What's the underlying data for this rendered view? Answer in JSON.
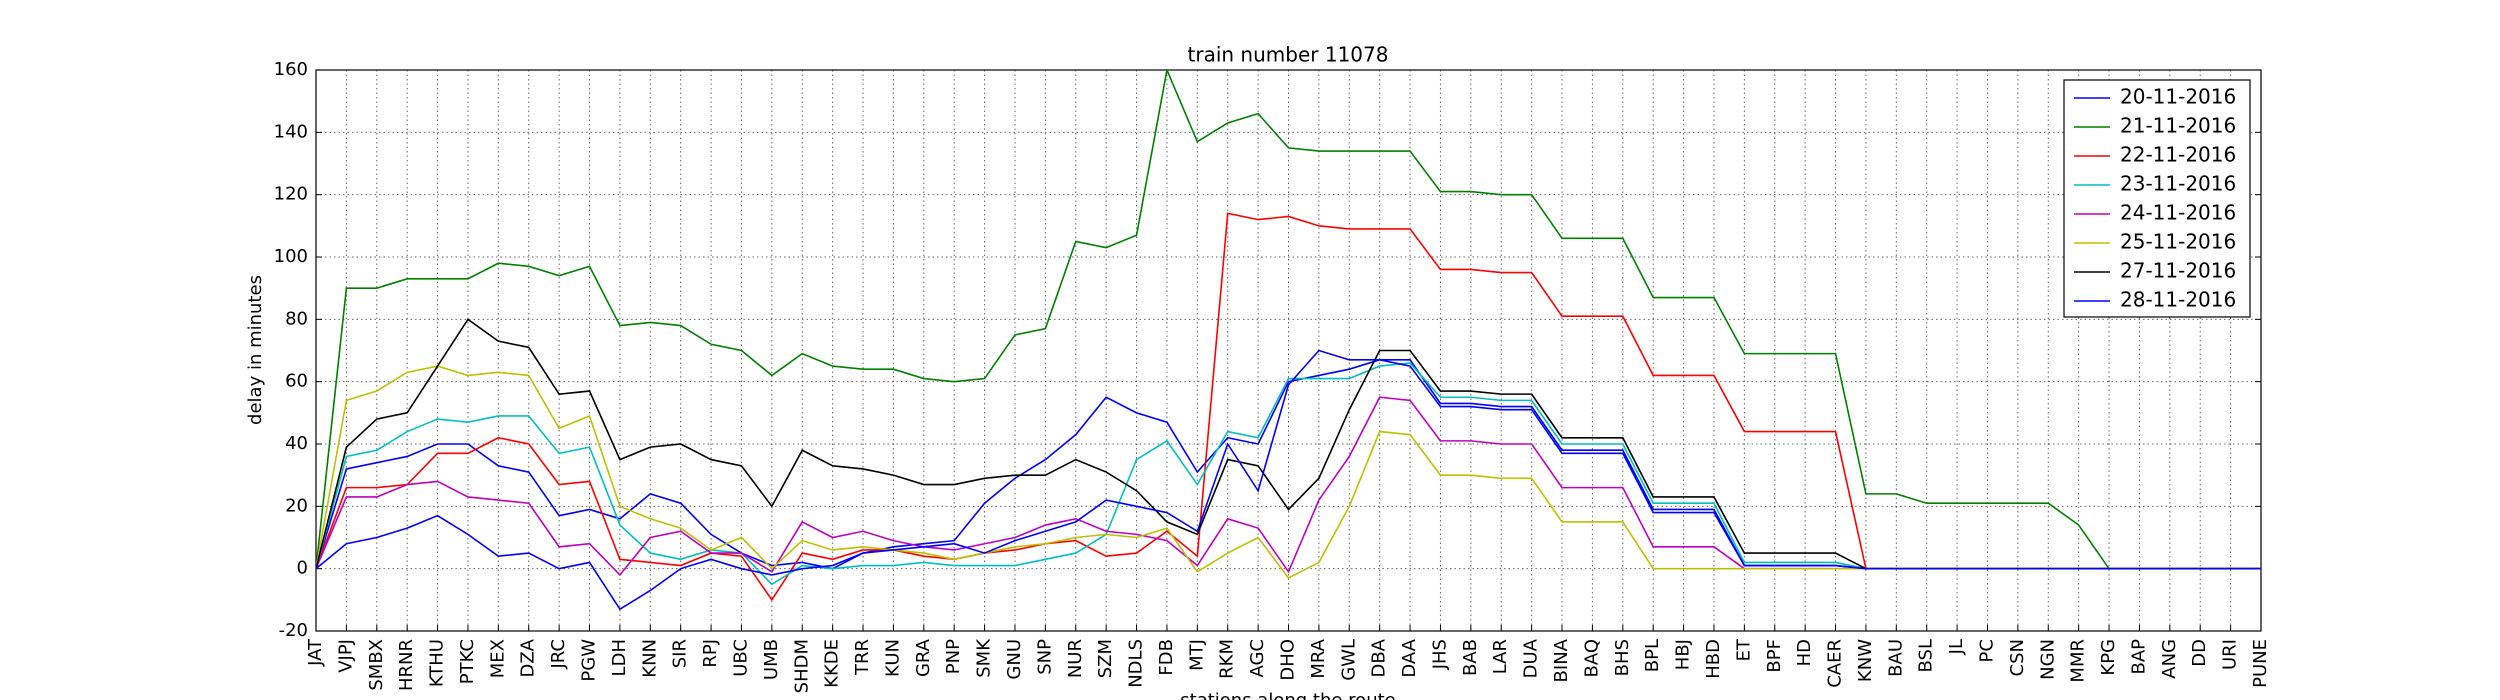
{
  "chart_data": {
    "type": "line",
    "title": "train number 11078",
    "x_label": "stations along the route",
    "y_label": "delay in minutes",
    "categories": [
      "JAT",
      "VJPJ",
      "SMBX",
      "HRNR",
      "KTHU",
      "PTKC",
      "MEX",
      "DZA",
      "JRC",
      "PGW",
      "LDH",
      "KNN",
      "SIR",
      "RPJ",
      "UBC",
      "UMB",
      "SHDM",
      "KKDE",
      "TRR",
      "KUN",
      "GRA",
      "PNP",
      "SMK",
      "GNU",
      "SNP",
      "NUR",
      "SZM",
      "NDLS",
      "FDB",
      "MTJ",
      "RKM",
      "AGC",
      "DHO",
      "MRA",
      "GWL",
      "DBA",
      "DAA",
      "JHS",
      "BAB",
      "LAR",
      "DUA",
      "BINA",
      "BAQ",
      "BHS",
      "BPL",
      "HBJ",
      "HBD",
      "ET",
      "BPF",
      "HD",
      "CAER",
      "KNW",
      "BAU",
      "BSL",
      "JL",
      "PC",
      "CSN",
      "NGN",
      "MMR",
      "KPG",
      "BAP",
      "ANG",
      "DD",
      "URI",
      "PUNE"
    ],
    "series": [
      {
        "name": "20-11-2016",
        "color": "#0000ff",
        "values": [
          0,
          32,
          34,
          36,
          40,
          40,
          33,
          31,
          17,
          19,
          16,
          24,
          21,
          11,
          5,
          1,
          2,
          0,
          5,
          7,
          8,
          9,
          21,
          29,
          35,
          43,
          55,
          50,
          47,
          31,
          42,
          40,
          60,
          62,
          64,
          67,
          67,
          53,
          53,
          52,
          52,
          38,
          38,
          38,
          19,
          19,
          19,
          1,
          1,
          1,
          1,
          0,
          0,
          0,
          0,
          0,
          0,
          0,
          0,
          0,
          0,
          0,
          0,
          0,
          0
        ]
      },
      {
        "name": "21-11-2016",
        "color": "#008000",
        "values": [
          0,
          90,
          90,
          93,
          93,
          93,
          98,
          97,
          94,
          97,
          78,
          79,
          78,
          72,
          70,
          62,
          69,
          65,
          64,
          64,
          61,
          60,
          61,
          75,
          77,
          105,
          103,
          107,
          160,
          137,
          143,
          146,
          135,
          134,
          134,
          134,
          134,
          121,
          121,
          120,
          120,
          106,
          106,
          106,
          87,
          87,
          87,
          69,
          69,
          69,
          69,
          24,
          24,
          21,
          21,
          21,
          21,
          21,
          14,
          0,
          0,
          0,
          0,
          0,
          0
        ]
      },
      {
        "name": "22-11-2016",
        "color": "#ff0000",
        "values": [
          0,
          26,
          26,
          27,
          37,
          37,
          42,
          40,
          27,
          28,
          3,
          2,
          1,
          5,
          4,
          -10,
          5,
          3,
          6,
          6,
          4,
          3,
          5,
          6,
          8,
          9,
          4,
          5,
          12,
          4,
          114,
          112,
          113,
          110,
          109,
          109,
          109,
          96,
          96,
          95,
          95,
          81,
          81,
          81,
          62,
          62,
          62,
          44,
          44,
          44,
          44,
          0,
          0,
          0,
          0,
          0,
          0,
          0,
          0,
          0,
          0,
          0,
          0,
          0,
          0
        ]
      },
      {
        "name": "23-11-2016",
        "color": "#00bfbf",
        "values": [
          0,
          36,
          38,
          44,
          48,
          47,
          49,
          49,
          37,
          39,
          14,
          5,
          3,
          6,
          5,
          -5,
          1,
          0,
          1,
          1,
          2,
          1,
          1,
          1,
          3,
          5,
          11,
          35,
          41,
          27,
          44,
          42,
          61,
          61,
          61,
          65,
          66,
          55,
          55,
          54,
          54,
          40,
          40,
          40,
          21,
          21,
          21,
          2,
          2,
          2,
          2,
          0,
          0,
          0,
          0,
          0,
          0,
          0,
          0,
          0,
          0,
          0,
          0,
          0,
          0
        ]
      },
      {
        "name": "24-11-2016",
        "color": "#bf00bf",
        "values": [
          0,
          23,
          23,
          27,
          28,
          23,
          22,
          21,
          7,
          8,
          -2,
          10,
          12,
          5,
          5,
          -1,
          15,
          10,
          12,
          9,
          7,
          6,
          8,
          10,
          14,
          16,
          12,
          11,
          9,
          1,
          16,
          13,
          -1,
          22,
          36,
          55,
          54,
          41,
          41,
          40,
          40,
          26,
          26,
          26,
          7,
          7,
          7,
          0,
          0,
          0,
          0,
          0,
          0,
          0,
          0,
          0,
          0,
          0,
          0,
          0,
          0,
          0,
          0,
          0,
          0
        ]
      },
      {
        "name": "25-11-2016",
        "color": "#bfbf00",
        "values": [
          0,
          54,
          57,
          63,
          65,
          62,
          63,
          62,
          45,
          49,
          20,
          16,
          13,
          6,
          10,
          0,
          9,
          6,
          7,
          6,
          5,
          3,
          5,
          7,
          8,
          10,
          11,
          10,
          13,
          -1,
          5,
          10,
          -3,
          2,
          20,
          44,
          43,
          30,
          30,
          29,
          29,
          15,
          15,
          15,
          0,
          0,
          0,
          0,
          0,
          0,
          0,
          0,
          0,
          0,
          0,
          0,
          0,
          0,
          0,
          0,
          0,
          0,
          0,
          0,
          0
        ]
      },
      {
        "name": "27-11-2016",
        "color": "#000000",
        "values": [
          0,
          39,
          48,
          50,
          65,
          80,
          73,
          71,
          56,
          57,
          35,
          39,
          40,
          35,
          33,
          20,
          38,
          33,
          32,
          30,
          27,
          27,
          29,
          30,
          30,
          35,
          31,
          25,
          15,
          11,
          35,
          33,
          19,
          29,
          51,
          70,
          70,
          57,
          57,
          56,
          56,
          42,
          42,
          42,
          23,
          23,
          23,
          5,
          5,
          5,
          5,
          0,
          0,
          0,
          0,
          0,
          0,
          0,
          0,
          0,
          0,
          0,
          0,
          0,
          0
        ]
      },
      {
        "name": "28-11-2016",
        "color": "#0000ff",
        "values": [
          0,
          8,
          10,
          13,
          17,
          11,
          4,
          5,
          0,
          2,
          -13,
          -7,
          0,
          3,
          0,
          -2,
          0,
          1,
          5,
          6,
          7,
          8,
          5,
          9,
          12,
          15,
          22,
          20,
          18,
          12,
          40,
          25,
          59,
          70,
          67,
          67,
          65,
          52,
          52,
          51,
          51,
          37,
          37,
          37,
          18,
          18,
          18,
          1,
          1,
          1,
          1,
          0,
          0,
          0,
          0,
          0,
          0,
          0,
          0,
          0,
          0,
          0,
          0,
          0,
          0
        ]
      }
    ],
    "ylim": [
      -20,
      160
    ],
    "yticks": [
      -20,
      0,
      20,
      40,
      60,
      80,
      100,
      120,
      140,
      160
    ],
    "grid": true,
    "legend": "upper-right"
  }
}
